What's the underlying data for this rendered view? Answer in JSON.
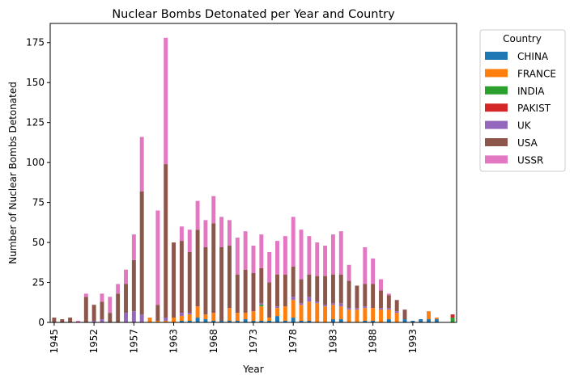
{
  "chart_data": {
    "type": "bar",
    "stacked": true,
    "title": "Nuclear Bombs Detonated per Year and Country",
    "xlabel": "Year",
    "ylabel": "Number of Nuclear Bombs Detonated",
    "ylim": [
      0,
      187
    ],
    "yticks": [
      0,
      25,
      50,
      75,
      100,
      125,
      150,
      175
    ],
    "xtick_labels": [
      "1945",
      "1952",
      "1957",
      "1963",
      "1968",
      "1973",
      "1978",
      "1983",
      "1988",
      "1993"
    ],
    "legend_title": "Country",
    "legend_position": "outside-top-right",
    "categories": [
      "1945",
      "1946",
      "1948",
      "1949",
      "1951",
      "1952",
      "1953",
      "1954",
      "1955",
      "1956",
      "1957",
      "1958",
      "1960",
      "1961",
      "1962",
      "1963",
      "1964",
      "1965",
      "1966",
      "1967",
      "1968",
      "1969",
      "1970",
      "1971",
      "1972",
      "1973",
      "1974",
      "1975",
      "1976",
      "1977",
      "1978",
      "1979",
      "1980",
      "1981",
      "1982",
      "1983",
      "1984",
      "1985",
      "1986",
      "1987",
      "1988",
      "1989",
      "1990",
      "1991",
      "1992",
      "1993",
      "1994",
      "1995",
      "1996",
      "1997",
      "1998"
    ],
    "series": [
      {
        "name": "CHINA",
        "color": "#1f77b4",
        "values": [
          0,
          0,
          0,
          0,
          0,
          0,
          0,
          0,
          0,
          0,
          0,
          0,
          0,
          0,
          0,
          0,
          1,
          1,
          3,
          2,
          1,
          1,
          1,
          1,
          2,
          1,
          1,
          1,
          4,
          1,
          3,
          1,
          1,
          0,
          0,
          2,
          2,
          0,
          0,
          1,
          1,
          0,
          2,
          0,
          2,
          1,
          2,
          2,
          2,
          0,
          0
        ]
      },
      {
        "name": "FRANCE",
        "color": "#ff7f0e",
        "values": [
          0,
          0,
          0,
          0,
          0,
          0,
          0,
          0,
          0,
          0,
          0,
          0,
          3,
          1,
          1,
          3,
          3,
          4,
          7,
          3,
          5,
          0,
          8,
          5,
          4,
          6,
          9,
          2,
          5,
          9,
          11,
          10,
          12,
          12,
          10,
          9,
          8,
          8,
          8,
          8,
          8,
          8,
          6,
          6,
          0,
          0,
          0,
          5,
          1,
          0,
          0
        ]
      },
      {
        "name": "INDIA",
        "color": "#2ca02c",
        "values": [
          0,
          0,
          0,
          0,
          0,
          0,
          0,
          0,
          0,
          0,
          0,
          0,
          0,
          0,
          0,
          0,
          0,
          0,
          0,
          0,
          0,
          0,
          0,
          0,
          0,
          0,
          1,
          0,
          0,
          0,
          0,
          0,
          0,
          0,
          0,
          0,
          0,
          0,
          0,
          0,
          0,
          0,
          0,
          0,
          0,
          0,
          0,
          0,
          0,
          0,
          3
        ]
      },
      {
        "name": "PAKIST",
        "color": "#d62728",
        "values": [
          0,
          0,
          0,
          0,
          0,
          0,
          0,
          0,
          0,
          0,
          0,
          0,
          0,
          0,
          0,
          0,
          0,
          0,
          0,
          0,
          0,
          0,
          0,
          0,
          0,
          0,
          0,
          0,
          0,
          0,
          0,
          0,
          0,
          0,
          0,
          0,
          0,
          0,
          0,
          0,
          0,
          0,
          0,
          0,
          0,
          0,
          0,
          0,
          0,
          0,
          2
        ]
      },
      {
        "name": "UK",
        "color": "#9467bd",
        "values": [
          0,
          0,
          0,
          0,
          0,
          1,
          2,
          0,
          0,
          6,
          7,
          5,
          0,
          0,
          2,
          0,
          2,
          1,
          0,
          0,
          0,
          0,
          0,
          0,
          0,
          0,
          1,
          0,
          1,
          0,
          2,
          1,
          3,
          1,
          1,
          1,
          2,
          1,
          1,
          1,
          0,
          1,
          1,
          1,
          0,
          0,
          0,
          0,
          0,
          0,
          0
        ]
      },
      {
        "name": "USA",
        "color": "#8c564b",
        "values": [
          3,
          2,
          3,
          0,
          16,
          10,
          11,
          6,
          18,
          18,
          32,
          77,
          0,
          10,
          96,
          47,
          45,
          38,
          48,
          42,
          56,
          46,
          39,
          24,
          27,
          24,
          22,
          22,
          20,
          20,
          19,
          15,
          14,
          16,
          18,
          18,
          18,
          17,
          14,
          14,
          15,
          11,
          8,
          7,
          6,
          0,
          0,
          0,
          0,
          0,
          0
        ]
      },
      {
        "name": "USSR",
        "color": "#e377c2",
        "values": [
          0,
          0,
          0,
          1,
          2,
          0,
          5,
          10,
          6,
          9,
          16,
          34,
          0,
          59,
          79,
          0,
          9,
          14,
          18,
          17,
          17,
          19,
          16,
          23,
          24,
          17,
          21,
          19,
          21,
          24,
          31,
          31,
          24,
          21,
          19,
          25,
          27,
          10,
          0,
          23,
          16,
          7,
          1,
          0,
          0,
          0,
          0,
          0,
          0,
          0,
          0
        ]
      }
    ]
  }
}
